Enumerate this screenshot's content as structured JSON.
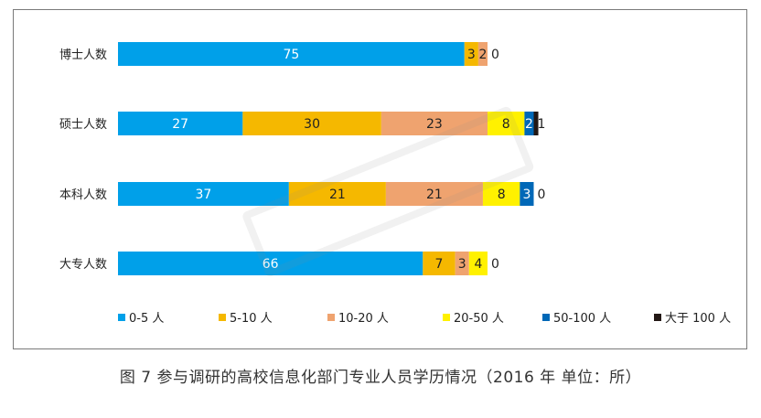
{
  "chart_data": {
    "type": "bar",
    "orientation": "horizontal",
    "stacked": true,
    "categories": [
      "博士人数",
      "硕士人数",
      "本科人数",
      "大专人数"
    ],
    "series": [
      {
        "name": "0-5 人",
        "color": "#00a0e9",
        "values": [
          75,
          27,
          37,
          66
        ],
        "labels": [
          "75",
          "27",
          "37",
          "66"
        ]
      },
      {
        "name": "5-10 人",
        "color": "#f5b800",
        "values": [
          3,
          30,
          21,
          7
        ],
        "labels": [
          "3",
          "30",
          "21",
          "7"
        ]
      },
      {
        "name": "10-20 人",
        "color": "#efa36f",
        "values": [
          2,
          23,
          21,
          3
        ],
        "labels": [
          "2",
          "23",
          "21",
          "3"
        ]
      },
      {
        "name": "20-50 人",
        "color": "#fff100",
        "values": [
          0,
          8,
          8,
          4
        ],
        "labels": [
          "0",
          "8",
          "8",
          "4"
        ]
      },
      {
        "name": "50-100 人",
        "color": "#0068b7",
        "values": [
          0,
          2,
          3,
          0
        ],
        "labels": [
          "",
          "2",
          "3",
          "0"
        ]
      },
      {
        "name": "大于 100 人",
        "color": "#231815",
        "values": [
          0,
          1,
          0,
          0
        ],
        "labels": [
          "",
          "1",
          "0",
          ""
        ]
      }
    ],
    "legend_position": "bottom",
    "grid": false
  },
  "caption": "图 7  参与调研的高校信息化部门专业人员学历情况（2016 年  单位：所）"
}
